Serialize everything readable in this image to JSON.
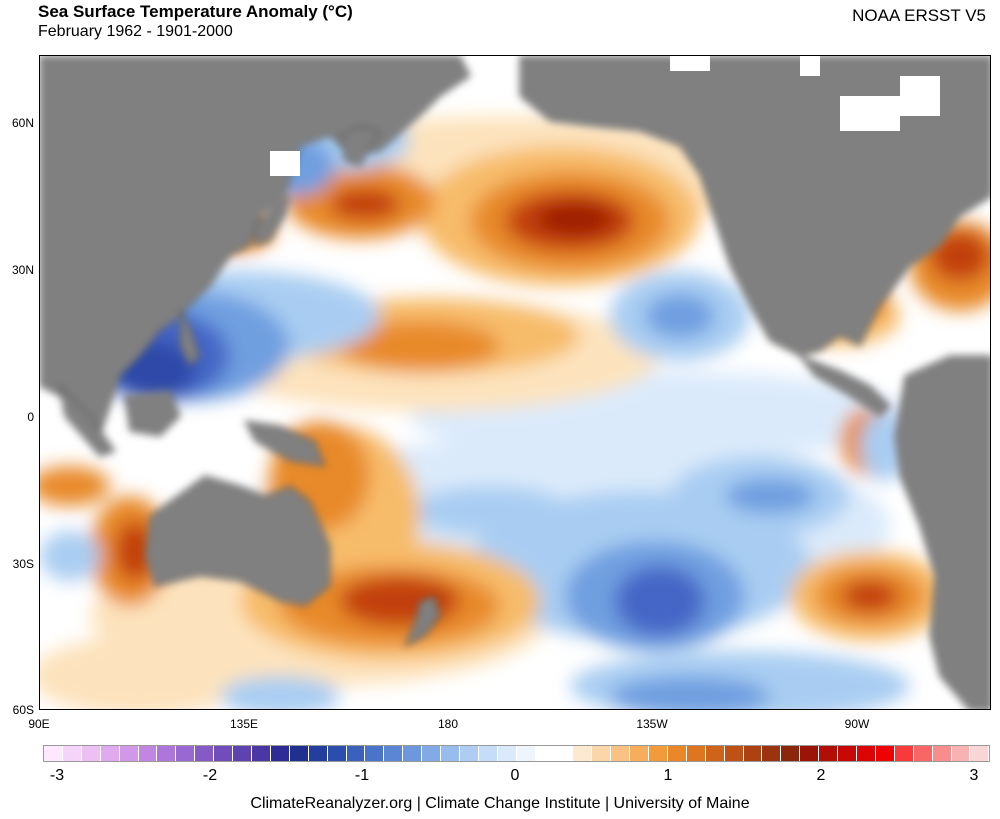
{
  "header": {
    "title": "Sea Surface Temperature Anomaly (°C)",
    "subtitle": "February 1962 - 1901-2000",
    "source": "NOAA ERSST V5"
  },
  "map": {
    "latitude_labels": [
      "60N",
      "30N",
      "0",
      "30S",
      "60S"
    ],
    "longitude_labels": [
      "90E",
      "135E",
      "180",
      "135W",
      "90W"
    ],
    "land_color": "#808080",
    "ocean_color": "#ffffff"
  },
  "anomalies": {
    "warm_core": "#9c1a05",
    "warm_strong": "#c2410e",
    "warm_mid": "#e88a2a",
    "warm_light": "#f7bc6a",
    "warm_pale": "#fde3bd",
    "cool_pale": "#dbeafb",
    "cool_light": "#a9cdf2",
    "cool_mid": "#6f9fe0",
    "cool_strong": "#4466c6",
    "cool_core": "#2f48a8"
  },
  "colorbar": {
    "tick_labels": [
      "-3",
      "-2",
      "-1",
      "0",
      "1",
      "2",
      "3"
    ],
    "colors": [
      "#fde8fd",
      "#f6d3f8",
      "#ecc0f3",
      "#e0abee",
      "#d198e8",
      "#c186e2",
      "#ae76da",
      "#9a68d1",
      "#855ac6",
      "#714dbb",
      "#5e42b0",
      "#4b37a3",
      "#2f2b96",
      "#20308f",
      "#233e9f",
      "#2b4ead",
      "#3a62bd",
      "#4a74c9",
      "#5a86d4",
      "#6d98de",
      "#82aae6",
      "#98bced",
      "#aecdf3",
      "#c5ddf8",
      "#dbeafb",
      "#eef5fd",
      "#ffffff",
      "#ffffff",
      "#fde9d2",
      "#fbd6ab",
      "#f9c283",
      "#f7ae5c",
      "#f39b3a",
      "#ea8827",
      "#de761f",
      "#d0631a",
      "#c05116",
      "#ae4112",
      "#9c330f",
      "#8a260c",
      "#9a1508",
      "#b20d06",
      "#c80805",
      "#dc0404",
      "#ef0202",
      "#f83a3a",
      "#f86666",
      "#f88d8d",
      "#f8b2b2",
      "#f8d6d6"
    ]
  },
  "footer": {
    "credits": "ClimateReanalyzer.org | Climate Change Institute | University of Maine"
  }
}
